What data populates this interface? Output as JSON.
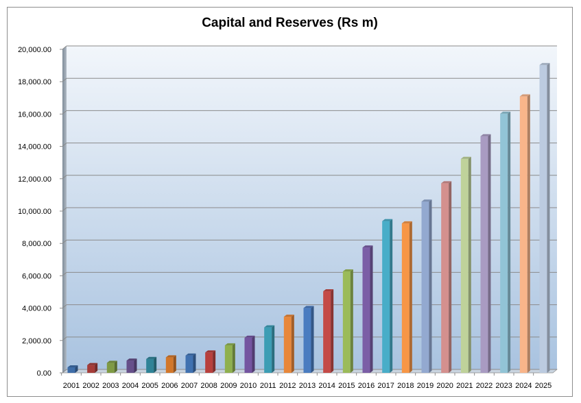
{
  "chart_data": {
    "type": "bar",
    "style": "3d-column",
    "title": "Capital and Reserves (Rs m)",
    "xlabel": "",
    "ylabel": "",
    "ylim": [
      0,
      20000
    ],
    "yticks": [
      "0.00",
      "2,000.00",
      "4,000.00",
      "6,000.00",
      "8,000.00",
      "10,000.00",
      "12,000.00",
      "14,000.00",
      "16,000.00",
      "18,000.00",
      "20,000.00"
    ],
    "grid": true,
    "legend": "none",
    "categories": [
      "2001",
      "2002",
      "2003",
      "2004",
      "2005",
      "2006",
      "2007",
      "2008",
      "2009",
      "2010",
      "2011",
      "2012",
      "2013",
      "2014",
      "2015",
      "2016",
      "2017",
      "2018",
      "2019",
      "2020",
      "2021",
      "2022",
      "2023",
      "2024",
      "2025"
    ],
    "values": [
      340,
      480,
      620,
      760,
      860,
      960,
      1070,
      1260,
      1700,
      2170,
      2810,
      3470,
      4010,
      5040,
      6270,
      7750,
      9380,
      9240,
      10590,
      11720,
      13230,
      14630,
      16020,
      17090,
      19030
    ],
    "colors": [
      "#3e6da8",
      "#a53c39",
      "#7f9a44",
      "#66508a",
      "#2f8397",
      "#d2772a",
      "#4071b0",
      "#b8403d",
      "#8fb04e",
      "#7455a0",
      "#3c9db4",
      "#e8873a",
      "#4a7cc0",
      "#c44a47",
      "#9bbb59",
      "#7b5ea6",
      "#48adc8",
      "#f79646",
      "#93a9d0",
      "#d4908e",
      "#bfd29a",
      "#a99bc2",
      "#92c4d6",
      "#f9b58a",
      "#bccbe0"
    ]
  }
}
